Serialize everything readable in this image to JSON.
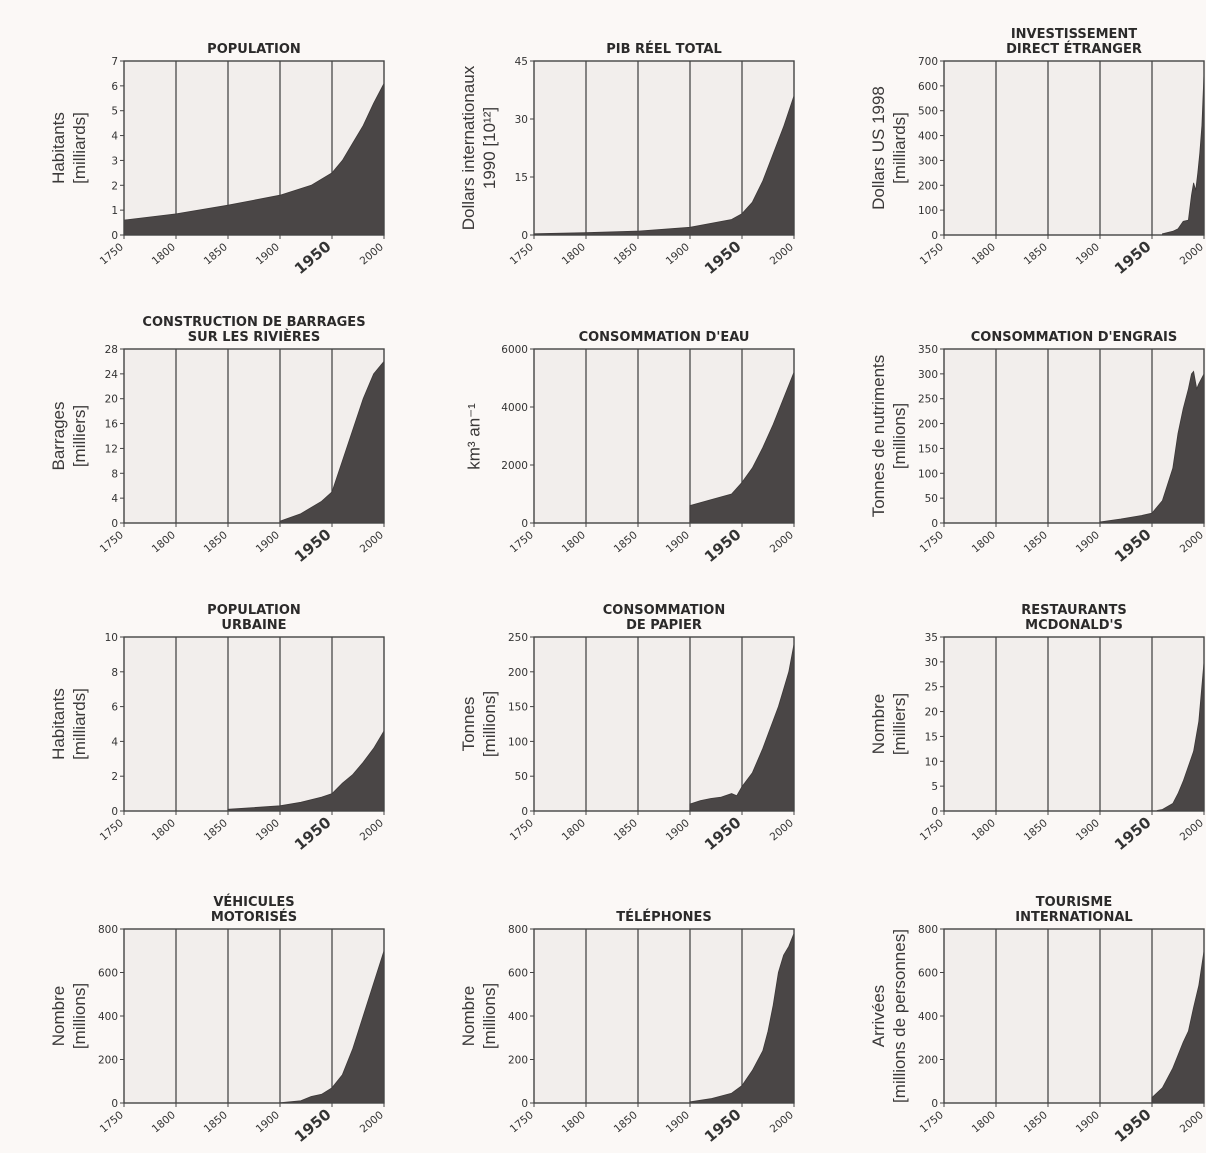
{
  "chart_data": [
    {
      "type": "area",
      "title": "POPULATION",
      "ylabel": "Habitants\n[milliards]",
      "yticks": [
        "0",
        "1",
        "2",
        "3",
        "4",
        "5",
        "6",
        "7"
      ],
      "ylim": [
        0,
        7
      ],
      "xlim": [
        1750,
        2000
      ],
      "xticks": [
        "1750",
        "1800",
        "1850",
        "1900",
        "1950",
        "2000"
      ],
      "x": [
        1750,
        1800,
        1850,
        1900,
        1930,
        1950,
        1960,
        1970,
        1980,
        1990,
        2000
      ],
      "y": [
        0.6,
        0.85,
        1.2,
        1.6,
        2.0,
        2.5,
        3.0,
        3.7,
        4.4,
        5.3,
        6.1
      ]
    },
    {
      "type": "area",
      "title": "PIB RÉEL TOTAL",
      "ylabel": "Dollars internationaux\n1990 [10¹²]",
      "yticks": [
        "0",
        "15",
        "30",
        "45"
      ],
      "ylim": [
        0,
        45
      ],
      "xlim": [
        1750,
        2000
      ],
      "xticks": [
        "1750",
        "1800",
        "1850",
        "1900",
        "1950",
        "2000"
      ],
      "x": [
        1750,
        1800,
        1850,
        1900,
        1920,
        1940,
        1950,
        1960,
        1970,
        1980,
        1990,
        2000
      ],
      "y": [
        0.3,
        0.6,
        1.0,
        2.0,
        3.0,
        4.0,
        5.5,
        8.5,
        14,
        21,
        28,
        36
      ]
    },
    {
      "type": "area",
      "title": "INVESTISSEMENT\nDIRECT ÉTRANGER",
      "ylabel": "Dollars US 1998\n[milliards]",
      "yticks": [
        "0",
        "100",
        "200",
        "300",
        "400",
        "500",
        "600",
        "700"
      ],
      "ylim": [
        0,
        700
      ],
      "xlim": [
        1750,
        2000
      ],
      "xticks": [
        "1750",
        "1800",
        "1850",
        "1900",
        "1950",
        "2000"
      ],
      "x": [
        1960,
        1970,
        1975,
        1980,
        1985,
        1988,
        1990,
        1992,
        1994,
        1996,
        1998,
        2000
      ],
      "y": [
        5,
        15,
        25,
        55,
        60,
        160,
        210,
        180,
        250,
        330,
        440,
        650
      ]
    },
    {
      "type": "area",
      "title": "CONSTRUCTION DE BARRAGES\nSUR LES RIVIÈRES",
      "ylabel": "Barrages\n[milliers]",
      "yticks": [
        "0",
        "4",
        "8",
        "12",
        "16",
        "20",
        "24",
        "28"
      ],
      "ylim": [
        0,
        28
      ],
      "xlim": [
        1750,
        2000
      ],
      "xticks": [
        "1750",
        "1800",
        "1850",
        "1900",
        "1950",
        "2000"
      ],
      "x": [
        1900,
        1920,
        1940,
        1950,
        1960,
        1970,
        1980,
        1990,
        2000
      ],
      "y": [
        0.3,
        1.5,
        3.5,
        5.0,
        10,
        15,
        20,
        24,
        26
      ]
    },
    {
      "type": "area",
      "title": "CONSOMMATION D'EAU",
      "ylabel": "km³ an⁻¹",
      "yticks": [
        "0",
        "2000",
        "4000",
        "6000"
      ],
      "ylim": [
        0,
        6000
      ],
      "xlim": [
        1750,
        2000
      ],
      "xticks": [
        "1750",
        "1800",
        "1850",
        "1900",
        "1950",
        "2000"
      ],
      "x": [
        1900,
        1920,
        1940,
        1950,
        1960,
        1970,
        1980,
        1990,
        2000
      ],
      "y": [
        600,
        800,
        1000,
        1400,
        1900,
        2600,
        3400,
        4300,
        5200
      ]
    },
    {
      "type": "area",
      "title": "CONSOMMATION D'ENGRAIS",
      "ylabel": "Tonnes de nutriments\n[millions]",
      "yticks": [
        "0",
        "50",
        "100",
        "150",
        "200",
        "250",
        "300",
        "350"
      ],
      "ylim": [
        0,
        350
      ],
      "xlim": [
        1750,
        2000
      ],
      "xticks": [
        "1750",
        "1800",
        "1850",
        "1900",
        "1950",
        "2000"
      ],
      "x": [
        1900,
        1920,
        1940,
        1950,
        1960,
        1970,
        1975,
        1980,
        1985,
        1988,
        1990,
        1993,
        1995,
        2000
      ],
      "y": [
        2,
        8,
        15,
        20,
        45,
        110,
        180,
        230,
        270,
        300,
        305,
        270,
        280,
        300
      ]
    },
    {
      "type": "area",
      "title": "POPULATION\nURBAINE",
      "ylabel": "Habitants\n[milliards]",
      "yticks": [
        "0",
        "2",
        "4",
        "6",
        "8",
        "10"
      ],
      "ylim": [
        0,
        10
      ],
      "xlim": [
        1750,
        2000
      ],
      "xticks": [
        "1750",
        "1800",
        "1850",
        "1900",
        "1950",
        "2000"
      ],
      "x": [
        1850,
        1900,
        1920,
        1940,
        1950,
        1960,
        1970,
        1980,
        1990,
        2000
      ],
      "y": [
        0.1,
        0.3,
        0.5,
        0.8,
        1.0,
        1.6,
        2.1,
        2.8,
        3.6,
        4.6
      ]
    },
    {
      "type": "area",
      "title": "CONSOMMATION\nDE PAPIER",
      "ylabel": "Tonnes\n[millions]",
      "yticks": [
        "0",
        "50",
        "100",
        "150",
        "200",
        "250"
      ],
      "ylim": [
        0,
        250
      ],
      "xlim": [
        1750,
        2000
      ],
      "xticks": [
        "1750",
        "1800",
        "1850",
        "1900",
        "1950",
        "2000"
      ],
      "x": [
        1900,
        1910,
        1920,
        1930,
        1940,
        1945,
        1950,
        1960,
        1970,
        1975,
        1980,
        1985,
        1990,
        1995,
        2000
      ],
      "y": [
        10,
        15,
        18,
        20,
        25,
        22,
        35,
        55,
        90,
        110,
        130,
        150,
        175,
        200,
        240
      ]
    },
    {
      "type": "area",
      "title": "RESTAURANTS\nMCDONALD'S",
      "ylabel": "Nombre\n[milliers]",
      "yticks": [
        "0",
        "5",
        "10",
        "15",
        "20",
        "25",
        "30",
        "35"
      ],
      "ylim": [
        0,
        35
      ],
      "xlim": [
        1750,
        2000
      ],
      "xticks": [
        "1750",
        "1800",
        "1850",
        "1900",
        "1950",
        "2000"
      ],
      "x": [
        1955,
        1960,
        1970,
        1975,
        1980,
        1985,
        1990,
        1995,
        2000
      ],
      "y": [
        0.1,
        0.3,
        1.5,
        3.5,
        6,
        9,
        12,
        18,
        30
      ]
    },
    {
      "type": "area",
      "title": "VÉHICULES\nMOTORISÉS",
      "ylabel": "Nombre\n[millions]",
      "yticks": [
        "0",
        "200",
        "400",
        "600",
        "800"
      ],
      "ylim": [
        0,
        800
      ],
      "xlim": [
        1750,
        2000
      ],
      "xticks": [
        "1750",
        "1800",
        "1850",
        "1900",
        "1950",
        "2000"
      ],
      "x": [
        1900,
        1920,
        1930,
        1940,
        1950,
        1960,
        1970,
        1980,
        1990,
        2000
      ],
      "y": [
        1,
        10,
        30,
        40,
        70,
        130,
        250,
        400,
        550,
        700
      ]
    },
    {
      "type": "area",
      "title": "TÉLÉPHONES",
      "ylabel": "Nombre\n[millions]",
      "yticks": [
        "0",
        "200",
        "400",
        "600",
        "800"
      ],
      "ylim": [
        0,
        800
      ],
      "xlim": [
        1750,
        2000
      ],
      "xticks": [
        "1750",
        "1800",
        "1850",
        "1900",
        "1950",
        "2000"
      ],
      "x": [
        1900,
        1920,
        1940,
        1950,
        1960,
        1970,
        1975,
        1980,
        1985,
        1990,
        1995,
        2000
      ],
      "y": [
        5,
        20,
        45,
        80,
        150,
        240,
        330,
        450,
        600,
        680,
        720,
        780
      ]
    },
    {
      "type": "area",
      "title": "TOURISME\nINTERNATIONAL",
      "ylabel": "Arrivées\n[millions de personnes]",
      "yticks": [
        "0",
        "200",
        "400",
        "600",
        "800"
      ],
      "ylim": [
        0,
        800
      ],
      "xlim": [
        1750,
        2000
      ],
      "xticks": [
        "1750",
        "1800",
        "1850",
        "1900",
        "1950",
        "2000"
      ],
      "x": [
        1950,
        1960,
        1970,
        1975,
        1980,
        1985,
        1990,
        1995,
        2000
      ],
      "y": [
        25,
        70,
        160,
        220,
        280,
        330,
        440,
        540,
        700
      ]
    }
  ]
}
